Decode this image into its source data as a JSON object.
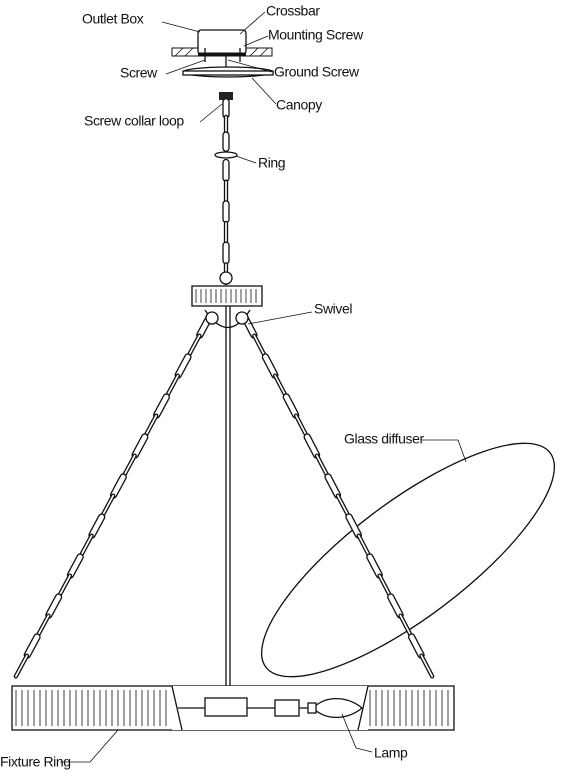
{
  "labels": [
    {
      "text": "Outlet  Box"
    },
    {
      "text": "Crossbar"
    },
    {
      "text": "Mounting Screw"
    },
    {
      "text": "Screw"
    },
    {
      "text": "Ground Screw"
    },
    {
      "text": "Canopy"
    },
    {
      "text": "Screw collar loop"
    },
    {
      "text": "Ring"
    },
    {
      "text": "Swivel"
    },
    {
      "text": "Glass diffuser"
    },
    {
      "text": "Fixture Ring"
    },
    {
      "text": "Lamp"
    }
  ]
}
